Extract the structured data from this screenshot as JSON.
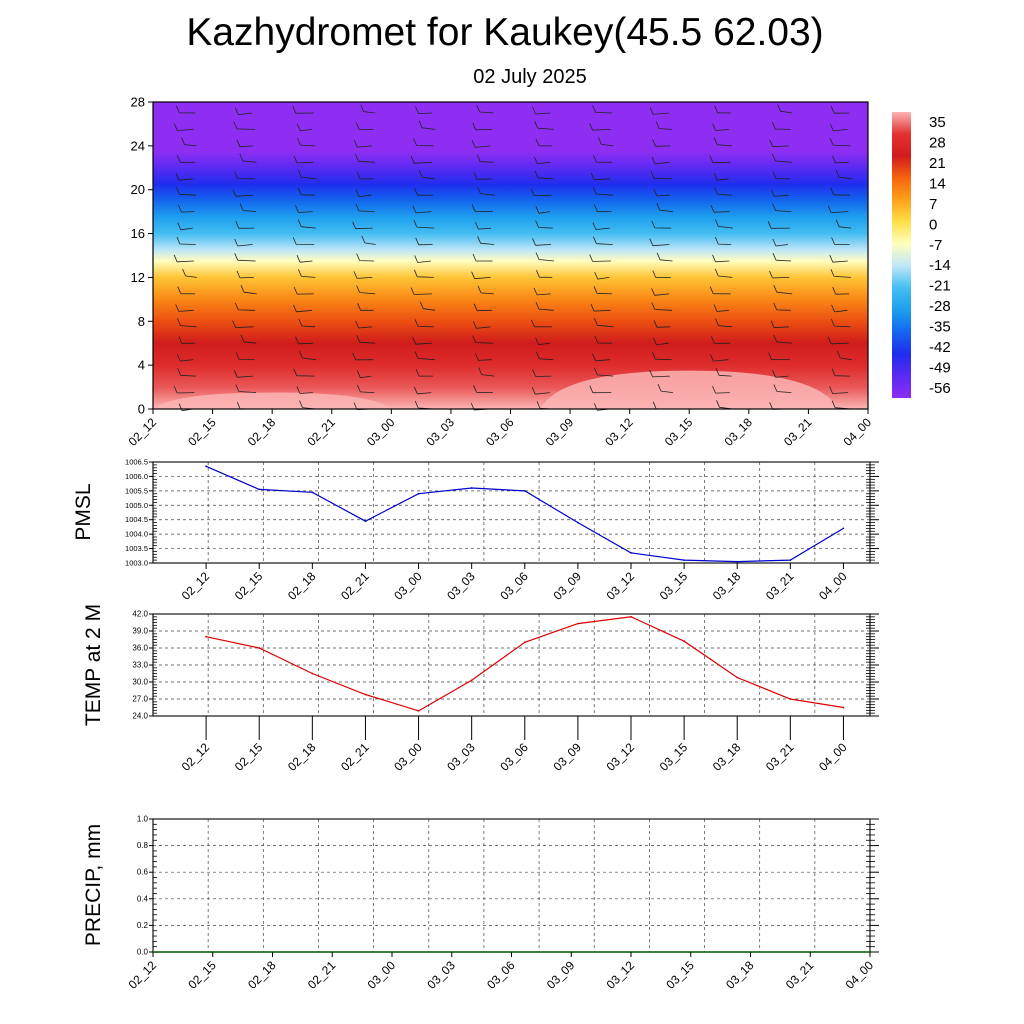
{
  "header": {
    "title": "Kazhydromet for Kaukey(45.5 62.03)",
    "subtitle": "02 July 2025"
  },
  "chart_data": [
    {
      "type": "heatmap",
      "name": "cross-section",
      "title": "",
      "xlabel": "",
      "ylabel": "",
      "x_tick_labels": [
        "02_12",
        "02_15",
        "02_18",
        "02_21",
        "03_00",
        "03_03",
        "03_06",
        "03_09",
        "03_12",
        "03_15",
        "03_18",
        "03_21",
        "04_00"
      ],
      "y_ticks": [
        0,
        4,
        8,
        12,
        16,
        20,
        24,
        28
      ],
      "ylim": [
        0,
        28
      ],
      "colorbar_labels": [
        "35",
        "28",
        "21",
        "14",
        "7",
        "0",
        "-7",
        "-14",
        "-21",
        "-28",
        "-35",
        "-42",
        "-49",
        "-56"
      ],
      "colorbar_stops": [
        {
          "value": 35,
          "color": "#fbb4b4"
        },
        {
          "value": 28,
          "color": "#e33232"
        },
        {
          "value": 21,
          "color": "#d01c1c"
        },
        {
          "value": 14,
          "color": "#f7640e"
        },
        {
          "value": 7,
          "color": "#fda21c"
        },
        {
          "value": 0,
          "color": "#ffe04a"
        },
        {
          "value": -7,
          "color": "#fffec0"
        },
        {
          "value": -14,
          "color": "#bfe6f7"
        },
        {
          "value": -21,
          "color": "#44bdf2"
        },
        {
          "value": -28,
          "color": "#1e9fee"
        },
        {
          "value": -35,
          "color": "#1366ee"
        },
        {
          "value": -42,
          "color": "#1f2dee"
        },
        {
          "value": -49,
          "color": "#5b2af2"
        },
        {
          "value": -56,
          "color": "#8e2ef2"
        }
      ],
      "temperature_profile": [
        {
          "height": 0,
          "value": 35
        },
        {
          "height": 2,
          "value": 30
        },
        {
          "height": 4,
          "value": 26
        },
        {
          "height": 6,
          "value": 21
        },
        {
          "height": 8,
          "value": 16
        },
        {
          "height": 10,
          "value": 10
        },
        {
          "height": 12,
          "value": 3
        },
        {
          "height": 13.5,
          "value": -7
        },
        {
          "height": 14.5,
          "value": -14
        },
        {
          "height": 16,
          "value": -21
        },
        {
          "height": 17.5,
          "value": -28
        },
        {
          "height": 19,
          "value": -35
        },
        {
          "height": 20.5,
          "value": -42
        },
        {
          "height": 22,
          "value": -49
        },
        {
          "height": 23.5,
          "value": -56
        },
        {
          "height": 28,
          "value": -60
        }
      ],
      "surface_warm_bands": [
        {
          "from_index": 0,
          "to_index": 4,
          "top_height": 1.5
        },
        {
          "from_index": 6.5,
          "to_index": 11.5,
          "top_height": 3.5
        }
      ]
    },
    {
      "type": "line",
      "name": "pmsl",
      "title": "",
      "xlabel": "",
      "ylabel": "PMSL",
      "x": [
        "02_12",
        "02_15",
        "02_18",
        "02_21",
        "03_00",
        "03_03",
        "03_06",
        "03_09",
        "03_12",
        "03_15",
        "03_18",
        "03_21",
        "04_00"
      ],
      "values": [
        1006.35,
        1005.55,
        1005.45,
        1004.45,
        1005.4,
        1005.6,
        1005.5,
        1004.4,
        1003.35,
        1003.1,
        1003.05,
        1003.1,
        1004.2
      ],
      "ylim": [
        1003.0,
        1006.5
      ],
      "y_tick_labels": [
        "1003.0",
        "1003.5",
        "1004.0",
        "1004.5",
        "1005.0",
        "1005.5",
        "1006.0",
        "1006.5"
      ],
      "color": "#0000cc",
      "grid": true
    },
    {
      "type": "line",
      "name": "temp2m",
      "title": "",
      "xlabel": "",
      "ylabel": "TEMP at 2 M",
      "x": [
        "02_12",
        "02_15",
        "02_18",
        "02_21",
        "03_00",
        "03_03",
        "03_06",
        "03_09",
        "03_12",
        "03_15",
        "03_18",
        "03_21",
        "04_00"
      ],
      "values": [
        38.0,
        36.0,
        31.5,
        27.8,
        24.9,
        30.3,
        37.0,
        40.3,
        41.5,
        37.2,
        30.8,
        27.0,
        25.5
      ],
      "ylim": [
        24.0,
        42.0
      ],
      "y_tick_labels": [
        "24.0",
        "27.0",
        "30.0",
        "33.0",
        "36.0",
        "39.0",
        "42.0"
      ],
      "color": "#dd0000",
      "grid": true
    },
    {
      "type": "line",
      "name": "precip",
      "title": "",
      "xlabel": "",
      "ylabel": "PRECIP, mm",
      "x_tick_labels": [
        "02_12",
        "02_15",
        "02_18",
        "02_21",
        "03_00",
        "03_03",
        "03_06",
        "03_09",
        "03_12",
        "03_15",
        "03_18",
        "03_21",
        "04_00"
      ],
      "values": [
        0,
        0,
        0,
        0,
        0,
        0,
        0,
        0,
        0,
        0,
        0,
        0,
        0
      ],
      "ylim": [
        0.0,
        1.0
      ],
      "y_tick_labels": [
        "0.0",
        "0.2",
        "0.4",
        "0.6",
        "0.8",
        "1.0"
      ],
      "color": "#006400",
      "grid": true
    }
  ]
}
